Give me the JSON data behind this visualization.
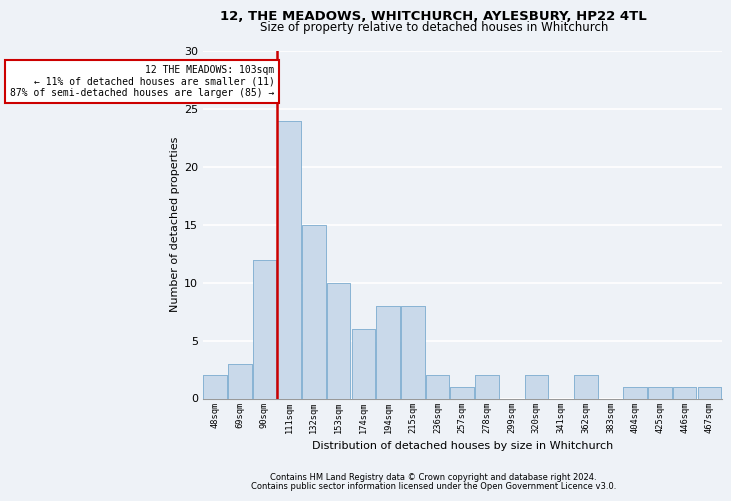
{
  "title1": "12, THE MEADOWS, WHITCHURCH, AYLESBURY, HP22 4TL",
  "title2": "Size of property relative to detached houses in Whitchurch",
  "xlabel": "Distribution of detached houses by size in Whitchurch",
  "ylabel": "Number of detached properties",
  "bar_labels": [
    "48sqm",
    "69sqm",
    "90sqm",
    "111sqm",
    "132sqm",
    "153sqm",
    "174sqm",
    "194sqm",
    "215sqm",
    "236sqm",
    "257sqm",
    "278sqm",
    "299sqm",
    "320sqm",
    "341sqm",
    "362sqm",
    "383sqm",
    "404sqm",
    "425sqm",
    "446sqm",
    "467sqm"
  ],
  "bar_values": [
    2,
    3,
    12,
    24,
    15,
    10,
    6,
    8,
    8,
    2,
    1,
    2,
    0,
    2,
    0,
    2,
    0,
    1,
    1,
    1,
    1
  ],
  "bar_color": "#c9d9ea",
  "bar_edge_color": "#8ab4d4",
  "vline_x_index": 3,
  "annotation_text": "12 THE MEADOWS: 103sqm\n← 11% of detached houses are smaller (11)\n87% of semi-detached houses are larger (85) →",
  "ylim": [
    0,
    30
  ],
  "yticks": [
    0,
    5,
    10,
    15,
    20,
    25,
    30
  ],
  "footer1": "Contains HM Land Registry data © Crown copyright and database right 2024.",
  "footer2": "Contains public sector information licensed under the Open Government Licence v3.0.",
  "background_color": "#eef2f7",
  "grid_color": "#ffffff",
  "annotation_box_facecolor": "#ffffff",
  "annotation_box_edgecolor": "#cc0000",
  "vline_color": "#cc0000",
  "title1_fontsize": 9.5,
  "title2_fontsize": 8.5,
  "ylabel_fontsize": 8,
  "xlabel_fontsize": 8,
  "footer_fontsize": 6.0
}
